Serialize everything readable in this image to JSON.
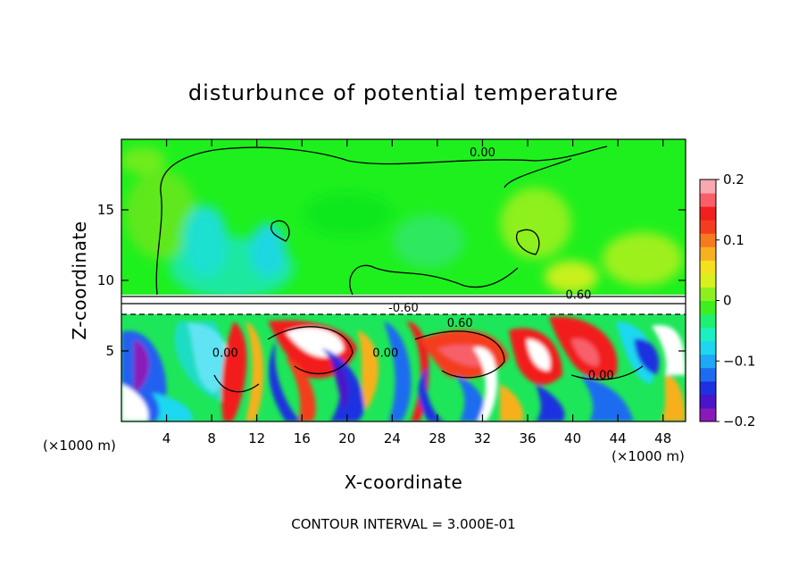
{
  "chart_data": {
    "type": "heatmap",
    "title": "disturbunce of potential temperature",
    "xlabel": "X-coordinate",
    "ylabel": "Z-coordinate",
    "x_unit_left": "(×1000 m)",
    "x_unit_right": "(×1000 m)",
    "xlim": [
      0,
      50
    ],
    "ylim": [
      0,
      20
    ],
    "x_ticks": [
      4,
      8,
      12,
      16,
      20,
      24,
      28,
      32,
      36,
      40,
      44,
      48
    ],
    "y_ticks": [
      5,
      10,
      15
    ],
    "colorbar": {
      "range": [
        -0.2,
        0.2
      ],
      "ticks": [
        {
          "value": 0.2,
          "label": "0.2"
        },
        {
          "value": 0.1,
          "label": "0.1"
        },
        {
          "value": 0.0,
          "label": "0"
        },
        {
          "value": -0.1,
          "label": "−0.1"
        },
        {
          "value": -0.2,
          "label": "−0.2"
        }
      ],
      "colors": [
        "#8a1ab8",
        "#4a14c8",
        "#1f30e0",
        "#1d6cf0",
        "#1ea8f5",
        "#1fd6f0",
        "#1df0c0",
        "#1ff070",
        "#3cf020",
        "#8cf020",
        "#d8f01f",
        "#f5e01f",
        "#f7b01f",
        "#f77a1f",
        "#f43c1f",
        "#f21f1f",
        "#f7606a",
        "#f7a8b0"
      ]
    },
    "contour_labels": [
      {
        "text": "0.00",
        "x": 32.0,
        "z": 18.8
      },
      {
        "text": "0.60",
        "x": 40.5,
        "z": 8.7
      },
      {
        "text": "-0.60",
        "x": 25.0,
        "z": 7.8
      },
      {
        "text": "0.60",
        "x": 30.0,
        "z": 6.7
      },
      {
        "text": "0.00",
        "x": 9.2,
        "z": 4.6
      },
      {
        "text": "0.00",
        "x": 23.4,
        "z": 4.6
      },
      {
        "text": "0.00",
        "x": 42.5,
        "z": 3.0
      }
    ],
    "contour_interval": "CONTOUR INTERVAL = 3.000E-01"
  },
  "colors": {
    "upper_field": "#1ef01e",
    "upper_dark": "#10c81e",
    "cyan": "#1ee0e8",
    "white": "#ffffff"
  }
}
